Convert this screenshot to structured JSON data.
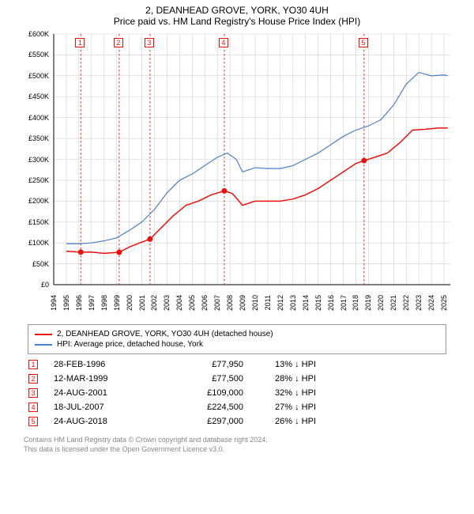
{
  "title_line1": "2, DEANHEAD GROVE, YORK, YO30 4UH",
  "title_line2": "Price paid vs. HM Land Registry's House Price Index (HPI)",
  "chart": {
    "type": "line",
    "background_color": "#ffffff",
    "grid_color": "#d0d0d0",
    "axis_color": "#000000",
    "label_fontsize": 9,
    "xlim": [
      1994,
      2025.5
    ],
    "ylim": [
      0,
      600000
    ],
    "ytick_step": 50000,
    "yticks": [
      "£0",
      "£50K",
      "£100K",
      "£150K",
      "£200K",
      "£250K",
      "£300K",
      "£350K",
      "£400K",
      "£450K",
      "£500K",
      "£550K",
      "£600K"
    ],
    "xticks": [
      1994,
      1995,
      1996,
      1997,
      1998,
      1999,
      2000,
      2001,
      2002,
      2003,
      2004,
      2005,
      2006,
      2007,
      2008,
      2009,
      2010,
      2011,
      2012,
      2013,
      2014,
      2015,
      2016,
      2017,
      2018,
      2019,
      2020,
      2021,
      2022,
      2023,
      2024,
      2025
    ],
    "series_price": {
      "label": "2, DEANHEAD GROVE, YORK, YO30 4UH (detached house)",
      "color": "#e8130e",
      "line_width": 1.5,
      "data": [
        [
          1995.0,
          80000
        ],
        [
          1996.15,
          77950
        ],
        [
          1997.0,
          78000
        ],
        [
          1998.0,
          75000
        ],
        [
          1999.2,
          77500
        ],
        [
          2000.0,
          90000
        ],
        [
          2001.0,
          102000
        ],
        [
          2001.65,
          109000
        ],
        [
          2002.5,
          135000
        ],
        [
          2003.5,
          165000
        ],
        [
          2004.5,
          190000
        ],
        [
          2005.5,
          200000
        ],
        [
          2006.5,
          215000
        ],
        [
          2007.55,
          224500
        ],
        [
          2008.2,
          218000
        ],
        [
          2009.0,
          190000
        ],
        [
          2010.0,
          200000
        ],
        [
          2011.0,
          200000
        ],
        [
          2012.0,
          200000
        ],
        [
          2013.0,
          205000
        ],
        [
          2014.0,
          215000
        ],
        [
          2015.0,
          230000
        ],
        [
          2016.0,
          250000
        ],
        [
          2017.0,
          270000
        ],
        [
          2018.0,
          290000
        ],
        [
          2018.65,
          297000
        ],
        [
          2019.5,
          305000
        ],
        [
          2020.5,
          315000
        ],
        [
          2021.5,
          340000
        ],
        [
          2022.5,
          370000
        ],
        [
          2023.5,
          372000
        ],
        [
          2024.5,
          375000
        ],
        [
          2025.3,
          375000
        ]
      ]
    },
    "series_hpi": {
      "label": "HPI: Average price, detached house, York",
      "color": "#4f7fc7",
      "line_width": 1.2,
      "data": [
        [
          1995.0,
          98000
        ],
        [
          1996.0,
          98000
        ],
        [
          1997.0,
          100000
        ],
        [
          1998.0,
          105000
        ],
        [
          1999.0,
          112000
        ],
        [
          2000.0,
          130000
        ],
        [
          2001.0,
          150000
        ],
        [
          2002.0,
          180000
        ],
        [
          2003.0,
          220000
        ],
        [
          2004.0,
          250000
        ],
        [
          2005.0,
          265000
        ],
        [
          2006.0,
          285000
        ],
        [
          2007.0,
          305000
        ],
        [
          2007.8,
          315000
        ],
        [
          2008.5,
          300000
        ],
        [
          2009.0,
          270000
        ],
        [
          2010.0,
          280000
        ],
        [
          2011.0,
          278000
        ],
        [
          2012.0,
          278000
        ],
        [
          2013.0,
          285000
        ],
        [
          2014.0,
          300000
        ],
        [
          2015.0,
          315000
        ],
        [
          2016.0,
          335000
        ],
        [
          2017.0,
          355000
        ],
        [
          2018.0,
          370000
        ],
        [
          2019.0,
          380000
        ],
        [
          2020.0,
          395000
        ],
        [
          2021.0,
          430000
        ],
        [
          2022.0,
          480000
        ],
        [
          2023.0,
          508000
        ],
        [
          2024.0,
          500000
        ],
        [
          2025.0,
          502000
        ],
        [
          2025.3,
          500000
        ]
      ]
    },
    "sale_markers": {
      "color": "#e8130e",
      "box_border": "#e8130e",
      "box_fill": "#ffffff",
      "dash_color": "#e8130e",
      "points": [
        {
          "n": "1",
          "year": 1996.15,
          "price": 77950
        },
        {
          "n": "2",
          "year": 1999.2,
          "price": 77500
        },
        {
          "n": "3",
          "year": 2001.65,
          "price": 109000
        },
        {
          "n": "4",
          "year": 2007.55,
          "price": 224500
        },
        {
          "n": "5",
          "year": 2018.65,
          "price": 297000
        }
      ]
    }
  },
  "legend": {
    "items": [
      {
        "color": "#e8130e",
        "label": "2, DEANHEAD GROVE, YORK, YO30 4UH (detached house)"
      },
      {
        "color": "#4f7fc7",
        "label": "HPI: Average price, detached house, York"
      }
    ]
  },
  "sales": [
    {
      "n": "1",
      "date": "28-FEB-1996",
      "price": "£77,950",
      "hpi": "13% ↓ HPI"
    },
    {
      "n": "2",
      "date": "12-MAR-1999",
      "price": "£77,500",
      "hpi": "28% ↓ HPI"
    },
    {
      "n": "3",
      "date": "24-AUG-2001",
      "price": "£109,000",
      "hpi": "32% ↓ HPI"
    },
    {
      "n": "4",
      "date": "18-JUL-2007",
      "price": "£224,500",
      "hpi": "27% ↓ HPI"
    },
    {
      "n": "5",
      "date": "24-AUG-2018",
      "price": "£297,000",
      "hpi": "26% ↓ HPI"
    }
  ],
  "footnote_l1": "Contains HM Land Registry data © Crown copyright and database right 2024.",
  "footnote_l2": "This data is licensed under the Open Government Licence v3.0.",
  "marker_border_color": "#e8130e"
}
